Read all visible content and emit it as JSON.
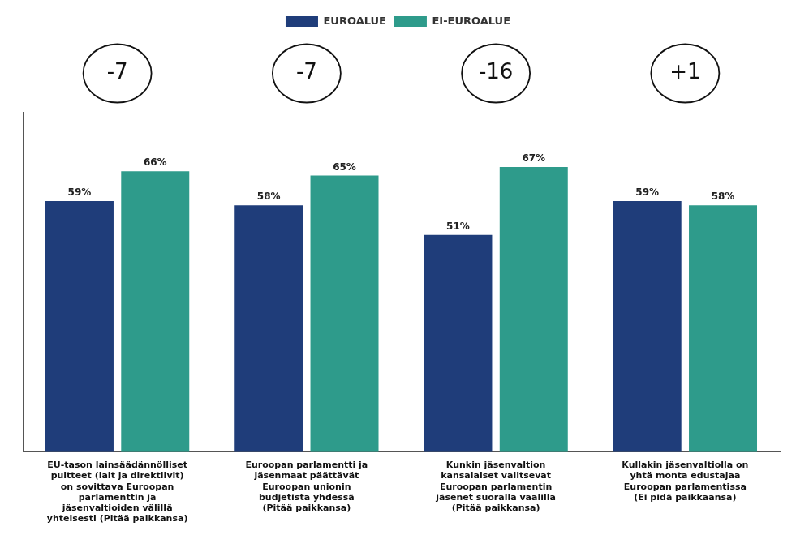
{
  "chart_data": {
    "type": "bar",
    "categories": [
      "EU-tason lainsäädännölliset\npuitteet (lait ja direktiivit)\non sovittava Euroopan\nparlamenttin ja\njäsenvaltioiden välillä\nyhteisesti (Pitää paikkansa)",
      "Euroopan parlamentti ja\njäsenmaat päättävät\nEuroopan unionin\nbudjetista yhdessä\n(Pitää paikkansa)",
      "Kunkin jäsenvaltion\nkansalaiset valitsevat\nEuroopan parlamentin\njäsenet suoralla vaalilla\n(Pitää paikkansa)",
      "Kullakin jäsenvaltiolla on\nyhtä monta edustajaa\nEuroopan parlamentissa\n(Ei pidä paikkaansa)"
    ],
    "series": [
      {
        "name": "EUROALUE",
        "color": "#1F3D7A",
        "values": [
          59,
          58,
          51,
          59
        ],
        "value_labels": [
          "59%",
          "58%",
          "51%",
          "59%"
        ]
      },
      {
        "name": "EI-EUROALUE",
        "color": "#2E9B8B",
        "values": [
          66,
          65,
          67,
          58
        ],
        "value_labels": [
          "66%",
          "65%",
          "67%",
          "58%"
        ]
      }
    ],
    "annotations": [
      "-7",
      "-7",
      "-16",
      "+1"
    ],
    "ylim": [
      0,
      80
    ],
    "grid": false,
    "legend": "top",
    "data_labels": true,
    "tick_labels": "x"
  }
}
